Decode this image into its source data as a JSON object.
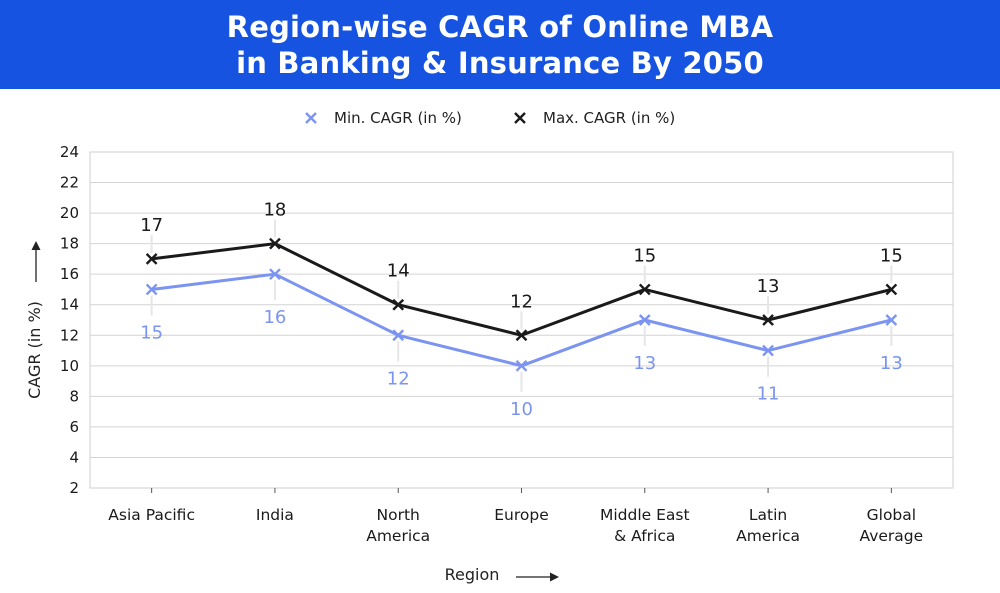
{
  "title": {
    "line1": "Region-wise CAGR of Online MBA",
    "line2": "in Banking & Insurance By 2050"
  },
  "colors": {
    "header_bg": "#1553e0",
    "min_series": "#7b94f2",
    "max_series": "#1a1a1a",
    "grid": "#d4d4d4"
  },
  "chart_data": {
    "type": "line",
    "xlabel": "Region",
    "ylabel": "CAGR (in %)",
    "ylim": [
      2,
      24
    ],
    "yticks": [
      2,
      4,
      6,
      8,
      10,
      12,
      14,
      16,
      18,
      20,
      22,
      24
    ],
    "grid": true,
    "legend_position": "top-center",
    "categories": [
      [
        "Asia Pacific"
      ],
      [
        "India"
      ],
      [
        "North",
        "America"
      ],
      [
        "Europe"
      ],
      [
        "Middle East",
        "& Africa"
      ],
      [
        "Latin",
        "America"
      ],
      [
        "Global",
        "Average"
      ]
    ],
    "series": [
      {
        "name": "Min. CAGR (in %)",
        "values": [
          15,
          16,
          12,
          10,
          13,
          11,
          13
        ]
      },
      {
        "name": "Max. CAGR (in %)",
        "values": [
          17,
          18,
          14,
          12,
          15,
          13,
          15
        ]
      }
    ]
  }
}
